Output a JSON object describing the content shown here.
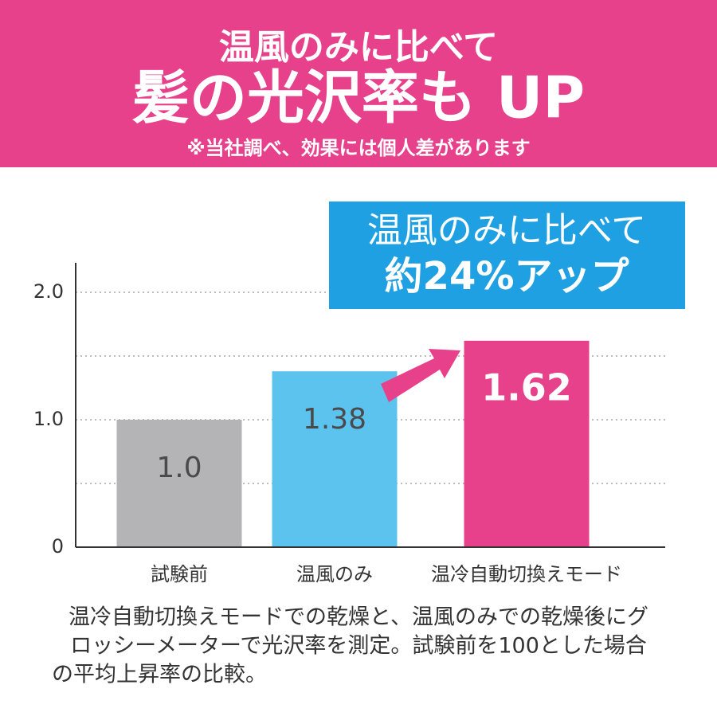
{
  "header": {
    "title": "温風のみに比べて",
    "headline": "髪の光沢率も UP",
    "note": "※当社調べ、効果には個人差があります"
  },
  "chart_data": {
    "type": "bar",
    "categories": [
      "試験前",
      "温風のみ",
      "温冷自動切換えモード"
    ],
    "values": [
      1.0,
      1.38,
      1.62
    ],
    "value_labels": [
      "1.0",
      "1.38",
      "1.62"
    ],
    "colors": [
      "#b4b4b6",
      "#5bc3ee",
      "#e8418b"
    ],
    "value_label_colors": [
      "#4a4a4a",
      "#4a4a4a",
      "#ffffff"
    ],
    "ylim": [
      0,
      2.2
    ],
    "yticks": [
      0,
      {
        "value": 1,
        "label": "1.0"
      },
      {
        "value": 2,
        "label": "2.0"
      }
    ],
    "grid": true
  },
  "callout": {
    "lines": [
      "温風のみに比べて",
      "約24%アップ"
    ]
  },
  "footnote": {
    "lines": [
      "温冷自動切換えモードでの乾燥と、温風のみでの乾燥後にグ",
      "ロッシーメーターで光沢率を測定。試験前を100とした場合",
      "の平均上昇率の比較。"
    ]
  }
}
